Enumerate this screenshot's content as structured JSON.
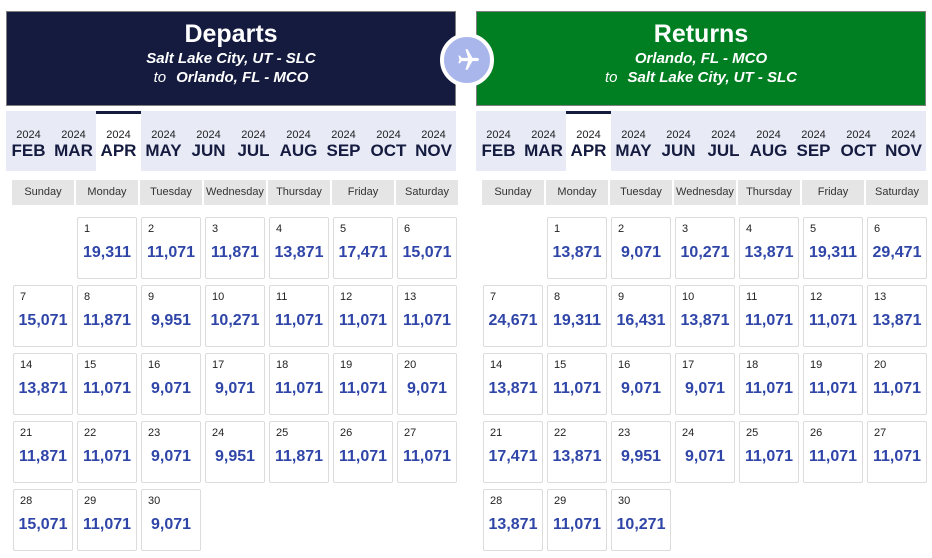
{
  "departs": {
    "title": "Departs",
    "origin": "Salt Lake City, UT - SLC",
    "to_label": "to",
    "destination": "Orlando, FL - MCO",
    "header_color": "#141b3f"
  },
  "returns": {
    "title": "Returns",
    "origin": "Orlando, FL - MCO",
    "to_label": "to",
    "destination": "Salt Lake City, UT - SLC",
    "header_color": "#007f22"
  },
  "swap_icon": "airplane-icon",
  "months": [
    {
      "year": "2024",
      "label": "FEB"
    },
    {
      "year": "2024",
      "label": "MAR"
    },
    {
      "year": "2024",
      "label": "APR",
      "active": true
    },
    {
      "year": "2024",
      "label": "MAY"
    },
    {
      "year": "2024",
      "label": "JUN"
    },
    {
      "year": "2024",
      "label": "JUL"
    },
    {
      "year": "2024",
      "label": "AUG"
    },
    {
      "year": "2024",
      "label": "SEP"
    },
    {
      "year": "2024",
      "label": "OCT"
    },
    {
      "year": "2024",
      "label": "NOV"
    }
  ],
  "weekdays": [
    "Sunday",
    "Monday",
    "Tuesday",
    "Wednesday",
    "Thursday",
    "Friday",
    "Saturday"
  ],
  "calendar": {
    "month": "APR",
    "year": "2024",
    "first_weekday_index": 1,
    "departs_prices": [
      "19,311",
      "11,071",
      "11,871",
      "13,871",
      "17,471",
      "15,071",
      "15,071",
      "11,871",
      "9,951",
      "10,271",
      "11,071",
      "11,071",
      "11,071",
      "13,871",
      "11,071",
      "9,071",
      "9,071",
      "11,071",
      "11,071",
      "9,071",
      "11,871",
      "11,071",
      "9,071",
      "9,951",
      "11,871",
      "11,071",
      "11,071",
      "15,071",
      "11,071",
      "9,071"
    ],
    "returns_prices": [
      "13,871",
      "9,071",
      "10,271",
      "13,871",
      "19,311",
      "29,471",
      "24,671",
      "19,311",
      "16,431",
      "13,871",
      "11,071",
      "11,071",
      "13,871",
      "13,871",
      "11,071",
      "9,071",
      "9,071",
      "11,071",
      "11,071",
      "11,071",
      "17,471",
      "13,871",
      "9,951",
      "9,071",
      "11,071",
      "11,071",
      "11,071",
      "13,871",
      "11,071",
      "10,271"
    ]
  }
}
